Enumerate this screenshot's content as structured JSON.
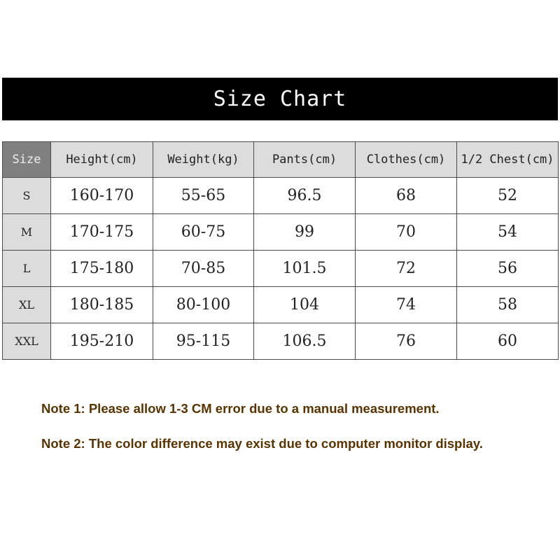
{
  "title": "Size Chart",
  "table": {
    "headers": [
      "Size",
      "Height(cm)",
      "Weight(kg)",
      "Pants(cm)",
      "Clothes(cm)",
      "1/2 Chest(cm)"
    ],
    "rows": [
      [
        "S",
        "160-170",
        "55-65",
        "96.5",
        "68",
        "52"
      ],
      [
        "M",
        "170-175",
        "60-75",
        "99",
        "70",
        "54"
      ],
      [
        "L",
        "175-180",
        "70-85",
        "101.5",
        "72",
        "56"
      ],
      [
        "XL",
        "180-185",
        "80-100",
        "104",
        "74",
        "58"
      ],
      [
        "XXL",
        "195-210",
        "95-115",
        "106.5",
        "76",
        "60"
      ]
    ]
  },
  "notes": [
    "Note 1: Please allow 1-3 CM error due to a manual measurement.",
    "Note 2: The color difference may exist due to computer monitor display."
  ],
  "colors": {
    "title_bg": "#000000",
    "size_header_bg": "#808080",
    "header_bg": "#dcdcdc",
    "note_text": "#5a3300"
  }
}
